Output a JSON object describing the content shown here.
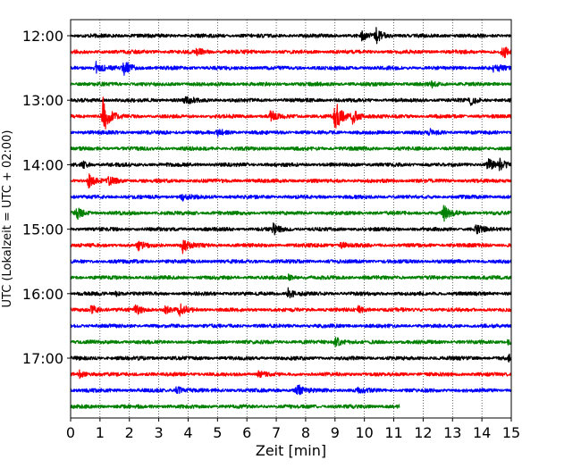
{
  "chart_data": {
    "type": "line",
    "subtype": "helicorder-seismogram",
    "title": "",
    "xlabel": "Zeit  [min]",
    "ylabel": "UTC (Lokalzeit = UTC + 02:00)",
    "xlim": [
      0,
      15
    ],
    "x_ticks": [
      "0",
      "1",
      "2",
      "3",
      "4",
      "5",
      "6",
      "7",
      "8",
      "9",
      "10",
      "11",
      "12",
      "13",
      "14",
      "15"
    ],
    "y_ticks": [
      "12:00",
      "13:00",
      "14:00",
      "15:00",
      "16:00",
      "17:00"
    ],
    "grid": "vertical dotted lines at each minute",
    "trace_interval_minutes": 15,
    "trace_colors": [
      "#000000",
      "#ff0000",
      "#0000ff",
      "#008000"
    ],
    "series": [
      {
        "start": "12:00",
        "color": "#000000",
        "events": [
          {
            "t": 10.4,
            "amp": 0.9
          },
          {
            "t": 9.9,
            "amp": 0.5
          }
        ]
      },
      {
        "start": "12:15",
        "color": "#ff0000",
        "events": [
          {
            "t": 4.3,
            "amp": 0.45
          },
          {
            "t": 14.7,
            "amp": 0.9
          }
        ]
      },
      {
        "start": "12:30",
        "color": "#0000ff",
        "events": [
          {
            "t": 0.85,
            "amp": 0.8
          },
          {
            "t": 1.8,
            "amp": 1.1
          },
          {
            "t": 14.4,
            "amp": 0.6
          }
        ]
      },
      {
        "start": "12:45",
        "color": "#008000",
        "events": [
          {
            "t": 12.3,
            "amp": 0.3
          }
        ]
      },
      {
        "start": "13:00",
        "color": "#000000",
        "events": [
          {
            "t": 3.9,
            "amp": 0.6
          },
          {
            "t": 13.6,
            "amp": 0.55
          }
        ]
      },
      {
        "start": "13:15",
        "color": "#ff0000",
        "events": [
          {
            "t": 1.1,
            "amp": 2.3
          },
          {
            "t": 6.8,
            "amp": 0.7
          },
          {
            "t": 9.0,
            "amp": 1.9
          },
          {
            "t": 9.6,
            "amp": 1.0
          }
        ]
      },
      {
        "start": "13:30",
        "color": "#0000ff",
        "events": [
          {
            "t": 5.0,
            "amp": 0.4
          },
          {
            "t": 12.2,
            "amp": 0.35
          }
        ]
      },
      {
        "start": "13:45",
        "color": "#008000",
        "events": []
      },
      {
        "start": "14:00",
        "color": "#000000",
        "events": [
          {
            "t": 0.4,
            "amp": 0.4
          },
          {
            "t": 14.2,
            "amp": 0.7
          },
          {
            "t": 14.6,
            "amp": 0.6
          }
        ]
      },
      {
        "start": "14:15",
        "color": "#ff0000",
        "events": [
          {
            "t": 0.6,
            "amp": 0.8
          },
          {
            "t": 1.3,
            "amp": 0.5
          }
        ]
      },
      {
        "start": "14:30",
        "color": "#0000ff",
        "events": [
          {
            "t": 3.8,
            "amp": 0.45
          }
        ]
      },
      {
        "start": "14:45",
        "color": "#008000",
        "events": [
          {
            "t": 0.2,
            "amp": 0.7
          },
          {
            "t": 12.7,
            "amp": 0.9
          }
        ]
      },
      {
        "start": "15:00",
        "color": "#000000",
        "events": [
          {
            "t": 6.9,
            "amp": 0.6
          },
          {
            "t": 13.8,
            "amp": 0.55
          }
        ]
      },
      {
        "start": "15:15",
        "color": "#ff0000",
        "events": [
          {
            "t": 2.3,
            "amp": 0.5
          },
          {
            "t": 3.8,
            "amp": 0.9
          },
          {
            "t": 9.2,
            "amp": 0.35
          }
        ]
      },
      {
        "start": "15:30",
        "color": "#0000ff",
        "events": []
      },
      {
        "start": "15:45",
        "color": "#008000",
        "events": [
          {
            "t": 7.4,
            "amp": 0.3
          }
        ]
      },
      {
        "start": "16:00",
        "color": "#000000",
        "events": [
          {
            "t": 1.5,
            "amp": 0.3
          },
          {
            "t": 7.4,
            "amp": 0.6
          }
        ]
      },
      {
        "start": "16:15",
        "color": "#ff0000",
        "events": [
          {
            "t": 0.7,
            "amp": 0.6
          },
          {
            "t": 2.2,
            "amp": 0.6
          },
          {
            "t": 3.2,
            "amp": 0.5
          },
          {
            "t": 3.7,
            "amp": 0.8
          },
          {
            "t": 9.8,
            "amp": 0.4
          }
        ]
      },
      {
        "start": "16:30",
        "color": "#0000ff",
        "events": []
      },
      {
        "start": "16:45",
        "color": "#008000",
        "events": [
          {
            "t": 9.0,
            "amp": 0.7
          },
          {
            "t": 14.9,
            "amp": 0.4
          }
        ]
      },
      {
        "start": "17:00",
        "color": "#000000",
        "events": [
          {
            "t": 14.9,
            "amp": 0.35
          }
        ]
      },
      {
        "start": "17:15",
        "color": "#ff0000",
        "events": [
          {
            "t": 0.3,
            "amp": 0.4
          },
          {
            "t": 6.4,
            "amp": 0.35
          }
        ]
      },
      {
        "start": "17:30",
        "color": "#0000ff",
        "events": [
          {
            "t": 3.6,
            "amp": 0.55
          },
          {
            "t": 7.7,
            "amp": 0.8
          },
          {
            "t": 9.8,
            "amp": 0.45
          }
        ]
      },
      {
        "start": "17:45",
        "color": "#008000",
        "end_minute": 11.2,
        "events": []
      }
    ]
  }
}
